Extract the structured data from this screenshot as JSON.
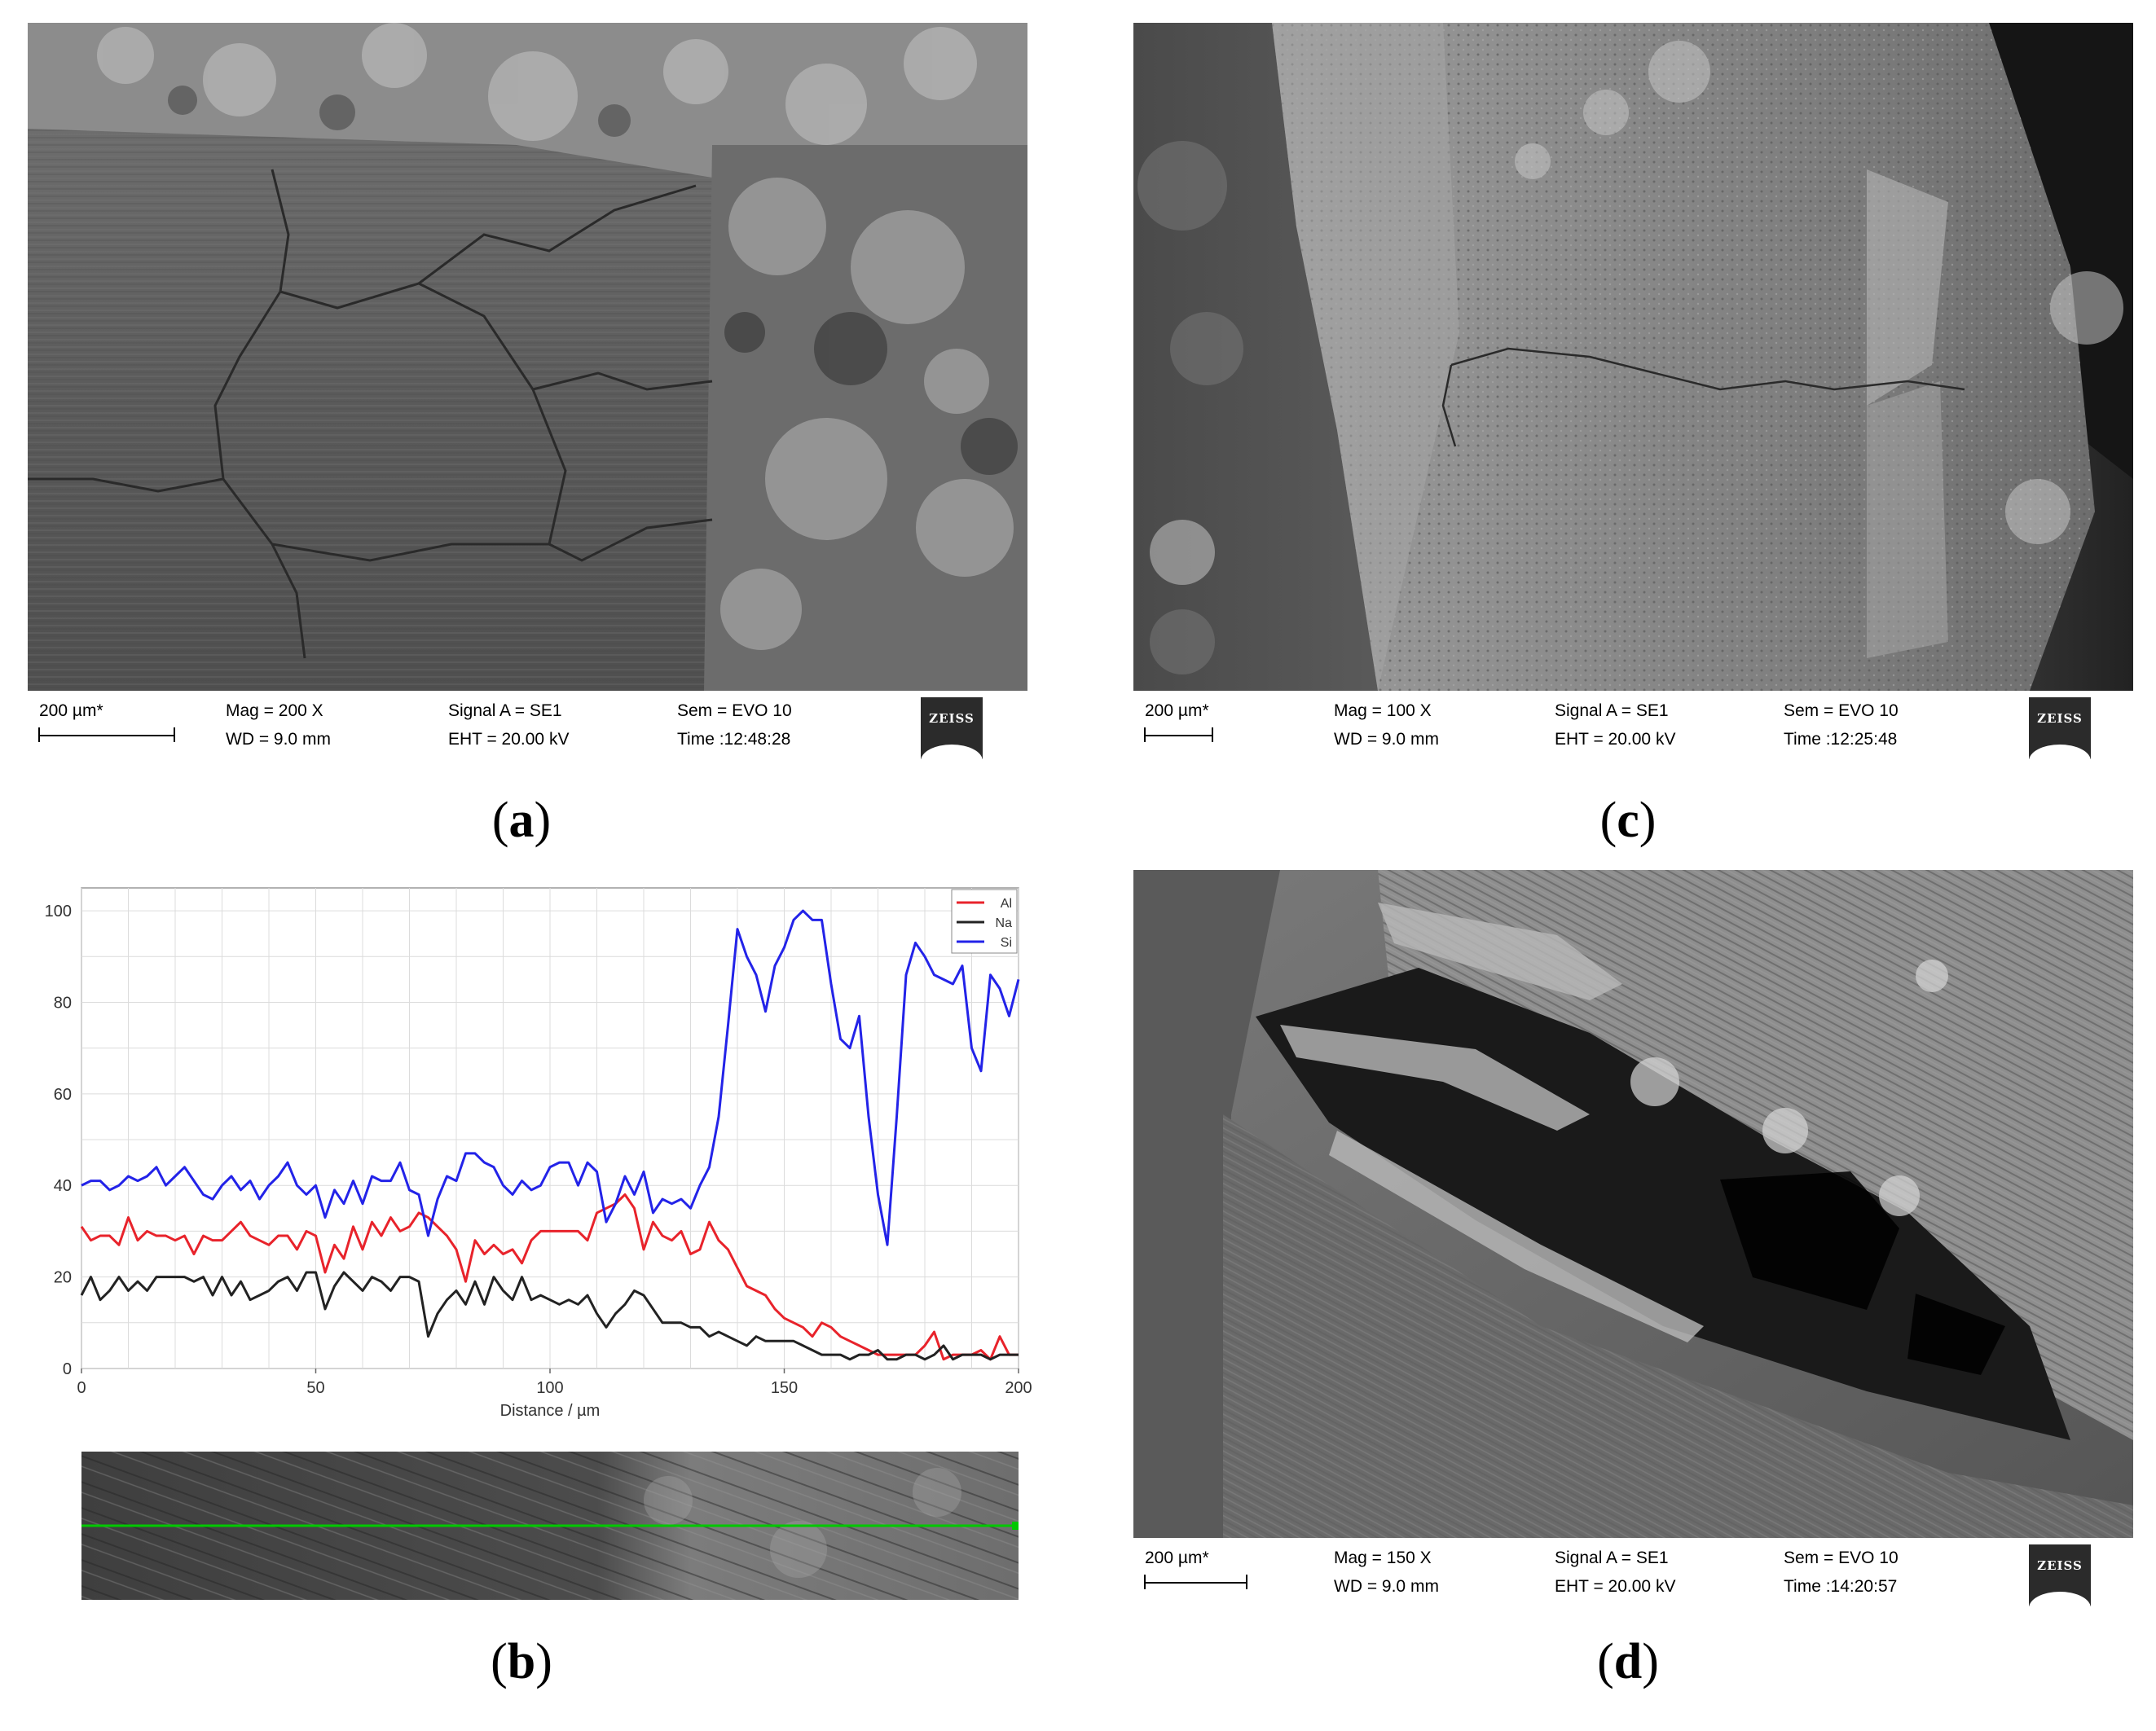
{
  "panels": {
    "a": {
      "caption_open": "(",
      "caption_letter": "a",
      "caption_close": ")",
      "scale_label": "200 µm*",
      "mag": "Mag =    200 X",
      "wd": "WD =  9.0 mm",
      "signal": "Signal A = SE1",
      "eht": "EHT = 20.00 kV",
      "sem": "Sem = EVO 10",
      "time": "Time :12:48:28",
      "logo": "ZEISS",
      "scale_fraction": 0.233
    },
    "c": {
      "caption_open": "(",
      "caption_letter": "c",
      "caption_close": ")",
      "scale_label": "200 µm*",
      "mag": "Mag =    100 X",
      "wd": "WD =  9.0 mm",
      "signal": "Signal A = SE1",
      "eht": "EHT = 20.00 kV",
      "sem": "Sem = EVO 10",
      "time": "Time :12:25:48",
      "logo": "ZEISS",
      "scale_fraction": 0.117
    },
    "d": {
      "caption_open": "(",
      "caption_letter": "d",
      "caption_close": ")",
      "scale_label": "200 µm*",
      "mag": "Mag =    150 X",
      "wd": "WD =  9.0 mm",
      "signal": "Signal A = SE1",
      "eht": "EHT = 20.00 kV",
      "sem": "Sem = EVO 10",
      "time": "Time :14:20:57",
      "logo": "ZEISS",
      "scale_fraction": 0.175
    },
    "b": {
      "caption_open": "(",
      "caption_letter": "b",
      "caption_close": ")"
    }
  },
  "chart_data": {
    "type": "line",
    "title": "",
    "xlabel": "Distance / µm",
    "ylabel": "",
    "xlim": [
      0,
      200
    ],
    "ylim": [
      0,
      105
    ],
    "xticks": [
      0,
      50,
      100,
      150,
      200
    ],
    "yticks": [
      0,
      20,
      40,
      60,
      80,
      100
    ],
    "grid": true,
    "legend_position": "top-right",
    "x": [
      0,
      2,
      4,
      6,
      8,
      10,
      12,
      14,
      16,
      18,
      20,
      22,
      24,
      26,
      28,
      30,
      32,
      34,
      36,
      38,
      40,
      42,
      44,
      46,
      48,
      50,
      52,
      54,
      56,
      58,
      60,
      62,
      64,
      66,
      68,
      70,
      72,
      74,
      76,
      78,
      80,
      82,
      84,
      86,
      88,
      90,
      92,
      94,
      96,
      98,
      100,
      102,
      104,
      106,
      108,
      110,
      112,
      114,
      116,
      118,
      120,
      122,
      124,
      126,
      128,
      130,
      132,
      134,
      136,
      138,
      140,
      142,
      144,
      146,
      148,
      150,
      152,
      154,
      156,
      158,
      160,
      162,
      164,
      166,
      168,
      170,
      172,
      174,
      176,
      178,
      180,
      182,
      184,
      186,
      188,
      190,
      192,
      194,
      196,
      198,
      200
    ],
    "series": [
      {
        "name": "Al",
        "color": "#e8232b",
        "values": [
          31,
          28,
          29,
          29,
          27,
          33,
          28,
          30,
          29,
          29,
          28,
          29,
          25,
          29,
          28,
          28,
          30,
          32,
          29,
          28,
          27,
          29,
          29,
          26,
          30,
          29,
          21,
          27,
          24,
          31,
          26,
          32,
          29,
          33,
          30,
          31,
          34,
          33,
          31,
          29,
          26,
          19,
          28,
          25,
          27,
          25,
          26,
          23,
          28,
          30,
          30,
          30,
          30,
          30,
          28,
          34,
          35,
          36,
          38,
          35,
          26,
          32,
          29,
          28,
          30,
          25,
          26,
          32,
          28,
          26,
          22,
          18,
          17,
          16,
          13,
          11,
          10,
          9,
          7,
          10,
          9,
          7,
          6,
          5,
          4,
          3,
          3,
          3,
          3,
          3,
          5,
          8,
          2,
          3,
          3,
          3,
          4,
          2,
          7,
          3,
          3
        ]
      },
      {
        "name": "Na",
        "color": "#222222",
        "values": [
          16,
          20,
          15,
          17,
          20,
          17,
          19,
          17,
          20,
          20,
          20,
          20,
          19,
          20,
          16,
          20,
          16,
          19,
          15,
          16,
          17,
          19,
          20,
          17,
          21,
          21,
          13,
          18,
          21,
          19,
          17,
          20,
          19,
          17,
          20,
          20,
          19,
          7,
          12,
          15,
          17,
          14,
          19,
          14,
          20,
          17,
          15,
          20,
          15,
          16,
          15,
          14,
          15,
          14,
          16,
          12,
          9,
          12,
          14,
          17,
          16,
          13,
          10,
          10,
          10,
          9,
          9,
          7,
          8,
          7,
          6,
          5,
          7,
          6,
          6,
          6,
          6,
          5,
          4,
          3,
          3,
          3,
          2,
          3,
          3,
          4,
          2,
          2,
          3,
          3,
          2,
          3,
          5,
          2,
          3,
          3,
          3,
          2,
          3,
          3,
          3
        ]
      },
      {
        "name": "Si",
        "color": "#2323e8",
        "values": [
          40,
          41,
          41,
          39,
          40,
          42,
          41,
          42,
          44,
          40,
          42,
          44,
          41,
          38,
          37,
          40,
          42,
          39,
          41,
          37,
          40,
          42,
          45,
          40,
          38,
          40,
          33,
          39,
          36,
          41,
          36,
          42,
          41,
          41,
          45,
          39,
          38,
          29,
          37,
          42,
          41,
          47,
          47,
          45,
          44,
          40,
          38,
          41,
          39,
          40,
          44,
          45,
          45,
          40,
          45,
          43,
          32,
          36,
          42,
          38,
          43,
          34,
          37,
          36,
          37,
          35,
          40,
          44,
          55,
          75,
          96,
          90,
          86,
          78,
          88,
          92,
          98,
          100,
          98,
          98,
          84,
          72,
          70,
          77,
          55,
          38,
          27,
          55,
          86,
          93,
          90,
          86,
          85,
          84,
          88,
          70,
          65,
          86,
          83,
          77,
          85
        ]
      }
    ],
    "linescan_color": "#00c800"
  }
}
